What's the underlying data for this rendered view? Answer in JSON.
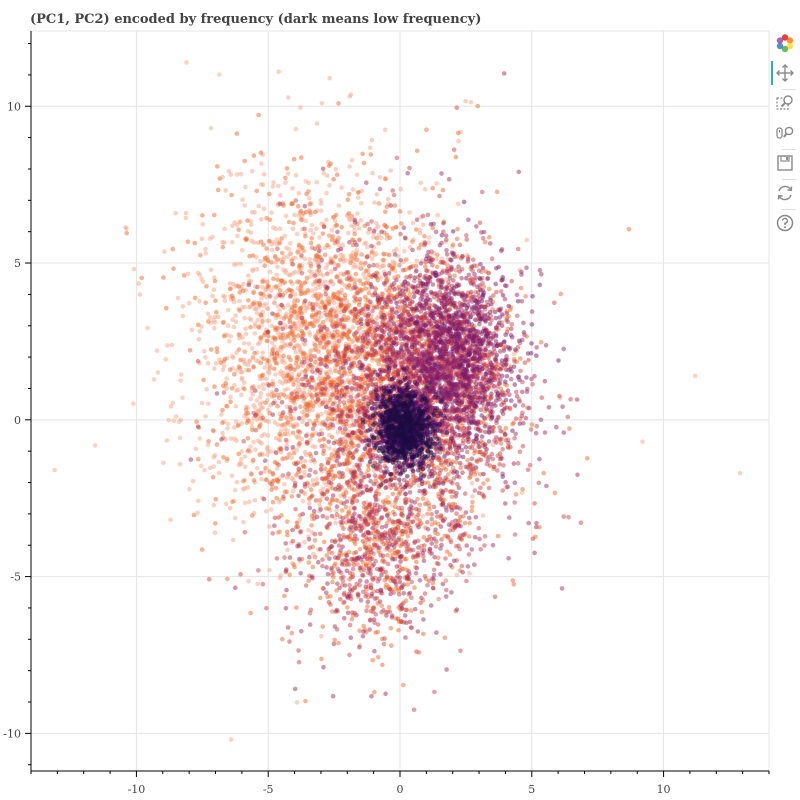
{
  "chart_data": {
    "type": "scatter",
    "title": "(PC1, PC2) encoded by frequency (dark means low frequency)",
    "xlabel": "",
    "ylabel": "",
    "xlim": [
      -14,
      14
    ],
    "ylim": [
      -11.2,
      12.4
    ],
    "xticks": [
      -10,
      -5,
      0,
      5,
      10
    ],
    "yticks": [
      -10,
      -5,
      0,
      5,
      10
    ],
    "grid": true,
    "legend": "none",
    "color_encoding": "frequency",
    "colormap": [
      "#1b0c41",
      "#4a0c6b",
      "#781c6d",
      "#a52c60",
      "#cf4446",
      "#ed6925",
      "#f7a486"
    ],
    "point_count_estimate": 30000,
    "series": [
      {
        "values_sample": [
          {
            "x": 0.1,
            "y": -0.3,
            "frequency": "low"
          },
          {
            "x": -0.5,
            "y": 1.0,
            "frequency": "medium"
          },
          {
            "x": 1.5,
            "y": 2.0,
            "frequency": "medium"
          },
          {
            "x": 3.0,
            "y": 3.5,
            "frequency": "medium"
          },
          {
            "x": -4.0,
            "y": 3.0,
            "frequency": "high"
          },
          {
            "x": -3.0,
            "y": 7.0,
            "frequency": "high"
          },
          {
            "x": -5.5,
            "y": -2.0,
            "frequency": "high"
          },
          {
            "x": -2.0,
            "y": -4.5,
            "frequency": "medium"
          },
          {
            "x": 2.5,
            "y": -1.5,
            "frequency": "medium"
          },
          {
            "x": 11.2,
            "y": 1.4,
            "frequency": "high"
          },
          {
            "x": 12.9,
            "y": -1.7,
            "frequency": "high"
          },
          {
            "x": -13.1,
            "y": -1.6,
            "frequency": "high"
          },
          {
            "x": -8.1,
            "y": 11.4,
            "frequency": "high"
          },
          {
            "x": -6.4,
            "y": -10.2,
            "frequency": "high"
          },
          {
            "x": 9.2,
            "y": -0.7,
            "frequency": "high"
          },
          {
            "x": -4.6,
            "y": 11.1,
            "frequency": "high"
          }
        ]
      }
    ]
  },
  "toolbar": {
    "tools": [
      {
        "icon": "bokeh-logo-icon",
        "active": false
      },
      {
        "icon": "pan-icon",
        "active": true
      },
      {
        "icon": "box-zoom-icon",
        "active": false
      },
      {
        "icon": "wheel-zoom-icon",
        "active": false
      },
      {
        "icon": "save-icon",
        "active": false
      },
      {
        "icon": "reset-icon",
        "active": false
      },
      {
        "icon": "help-icon",
        "active": false
      }
    ]
  }
}
